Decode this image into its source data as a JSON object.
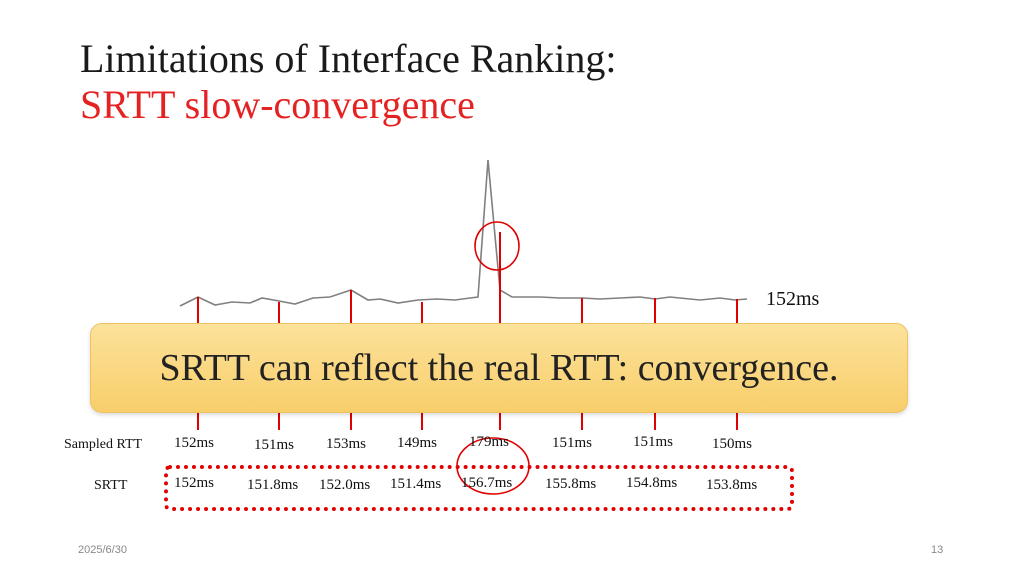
{
  "slide": {
    "title_line1": "Limitations of Interface Ranking:",
    "title_line2": "SRTT slow-convergence",
    "current_rtt_label": "152ms",
    "callout_text": "SRTT can reflect the real RTT: convergence.",
    "sampled_label": "Sampled RTT",
    "srtt_label": "SRTT",
    "sampled_values": [
      "152ms",
      "151ms",
      "153ms",
      "149ms",
      "179ms",
      "151ms",
      "151ms",
      "150ms"
    ],
    "srtt_values": [
      "152ms",
      "151.8ms",
      "152.0ms",
      "151.4ms",
      "156.7ms",
      "155.8ms",
      "154.8ms",
      "153.8ms"
    ],
    "date": "2025/6/30",
    "page_number": "13"
  },
  "colors": {
    "accent": "#e52222",
    "marker": "#e00000",
    "callout": "#f8ce6a",
    "trace": "#808080"
  }
}
